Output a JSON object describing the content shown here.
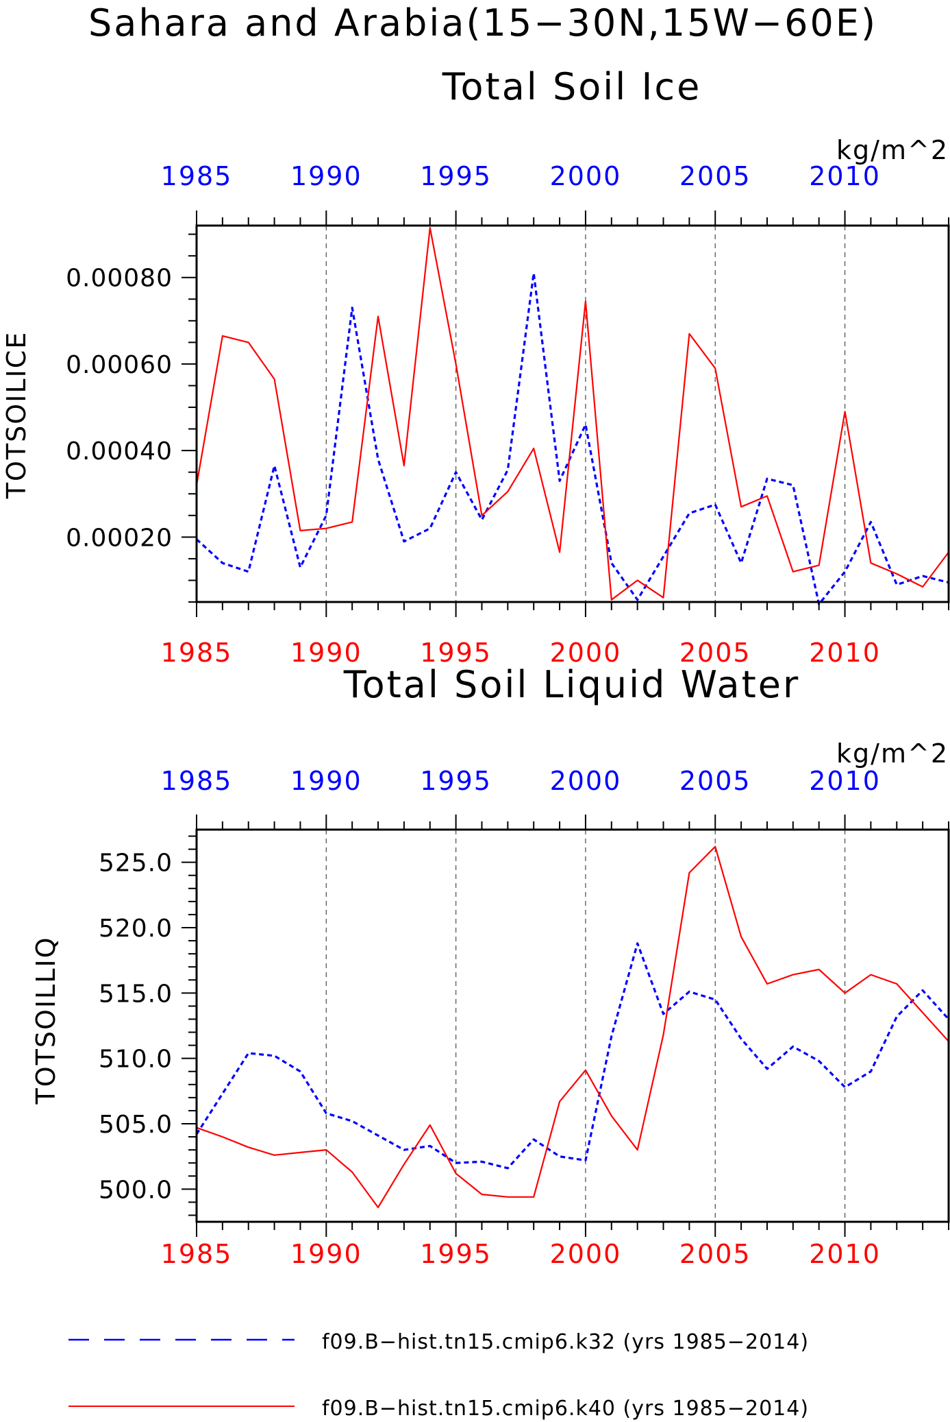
{
  "figure": {
    "title": "Sahara and Arabia(15−30N,15W−60E)"
  },
  "colors": {
    "k32": "#0000ff",
    "k40": "#ff0000",
    "axis": "#000000",
    "grid": "#555555"
  },
  "legend": {
    "entries": [
      {
        "series": "k32",
        "label": "f09.B−hist.tn15.cmip6.k32 (yrs 1985−2014)",
        "style": "dashed"
      },
      {
        "series": "k40",
        "label": "f09.B−hist.tn15.cmip6.k40 (yrs 1985−2014)",
        "style": "solid"
      }
    ]
  },
  "chart_data": [
    {
      "type": "line",
      "title": "Total Soil Ice",
      "ylabel": "TOTSOILICE",
      "units": "kg/m^2",
      "xlim": [
        1985,
        2014
      ],
      "ylim": [
        5e-05,
        0.00092
      ],
      "x_major_ticks": [
        1985,
        1990,
        1995,
        2000,
        2005,
        2010
      ],
      "x_tick_labels": [
        "1985",
        "1990",
        "1995",
        "2000",
        "2005",
        "2010"
      ],
      "grid_x": [
        1990,
        1995,
        2000,
        2005,
        2010
      ],
      "y_major_ticks": [
        0.0002,
        0.0004,
        0.0006,
        0.0008
      ],
      "y_tick_labels": [
        "0.00020",
        "0.00040",
        "0.00060",
        "0.00080"
      ],
      "y_minor_step": 5e-05,
      "x": [
        1985,
        1986,
        1987,
        1988,
        1989,
        1990,
        1991,
        1992,
        1993,
        1994,
        1995,
        1996,
        1997,
        1998,
        1999,
        2000,
        2001,
        2002,
        2003,
        2004,
        2005,
        2006,
        2007,
        2008,
        2009,
        2010,
        2011,
        2012,
        2013,
        2014
      ],
      "series": [
        {
          "key": "k32",
          "values": [
            0.000195,
            0.00014,
            0.00012,
            0.000365,
            0.00013,
            0.00025,
            0.00073,
            0.00038,
            0.00019,
            0.00022,
            0.00035,
            0.00024,
            0.000355,
            0.00081,
            0.00033,
            0.00046,
            0.00014,
            5.5e-05,
            0.000155,
            0.000255,
            0.000275,
            0.00014,
            0.000335,
            0.00032,
            4.5e-05,
            0.00012,
            0.000235,
            9e-05,
            0.00011,
            9.5e-05
          ]
        },
        {
          "key": "k40",
          "values": [
            0.00032,
            0.000665,
            0.00065,
            0.000565,
            0.000215,
            0.00022,
            0.000235,
            0.00071,
            0.000365,
            0.000915,
            0.0006,
            0.00025,
            0.000305,
            0.000405,
            0.000165,
            0.000745,
            5.5e-05,
            0.0001,
            6e-05,
            0.00067,
            0.00059,
            0.00027,
            0.000295,
            0.00012,
            0.000135,
            0.00049,
            0.00014,
            0.000115,
            8.5e-05,
            0.000165
          ]
        }
      ]
    },
    {
      "type": "line",
      "title": "Total Soil Liquid Water",
      "ylabel": "TOTSOILLIQ",
      "units": "kg/m^2",
      "xlim": [
        1985,
        2014
      ],
      "ylim": [
        497.5,
        527.5
      ],
      "x_major_ticks": [
        1985,
        1990,
        1995,
        2000,
        2005,
        2010
      ],
      "x_tick_labels": [
        "1985",
        "1990",
        "1995",
        "2000",
        "2005",
        "2010"
      ],
      "grid_x": [
        1990,
        1995,
        2000,
        2005,
        2010
      ],
      "y_major_ticks": [
        500,
        505,
        510,
        515,
        520,
        525
      ],
      "y_tick_labels": [
        "500.0",
        "505.0",
        "510.0",
        "515.0",
        "520.0",
        "525.0"
      ],
      "y_minor_step": 1,
      "x": [
        1985,
        1986,
        1987,
        1988,
        1989,
        1990,
        1991,
        1992,
        1993,
        1994,
        1995,
        1996,
        1997,
        1998,
        1999,
        2000,
        2001,
        2002,
        2003,
        2004,
        2005,
        2006,
        2007,
        2008,
        2009,
        2010,
        2011,
        2012,
        2013,
        2014
      ],
      "series": [
        {
          "key": "k32",
          "values": [
            504.2,
            507.3,
            510.4,
            510.2,
            509.0,
            505.8,
            505.2,
            504.1,
            503.0,
            503.3,
            502.0,
            502.1,
            501.6,
            503.8,
            502.5,
            502.2,
            511.7,
            518.8,
            513.4,
            515.1,
            514.5,
            511.5,
            509.2,
            510.9,
            509.8,
            507.8,
            509.0,
            513.2,
            515.2,
            513.0
          ]
        },
        {
          "key": "k40",
          "values": [
            504.7,
            504.0,
            503.2,
            502.6,
            502.8,
            503.0,
            501.3,
            498.6,
            501.9,
            504.9,
            501.2,
            499.6,
            499.4,
            499.4,
            506.7,
            509.1,
            505.6,
            503.0,
            511.8,
            524.2,
            526.2,
            519.3,
            515.7,
            516.4,
            516.8,
            515.0,
            516.4,
            515.7,
            513.5,
            511.3
          ]
        }
      ]
    }
  ]
}
